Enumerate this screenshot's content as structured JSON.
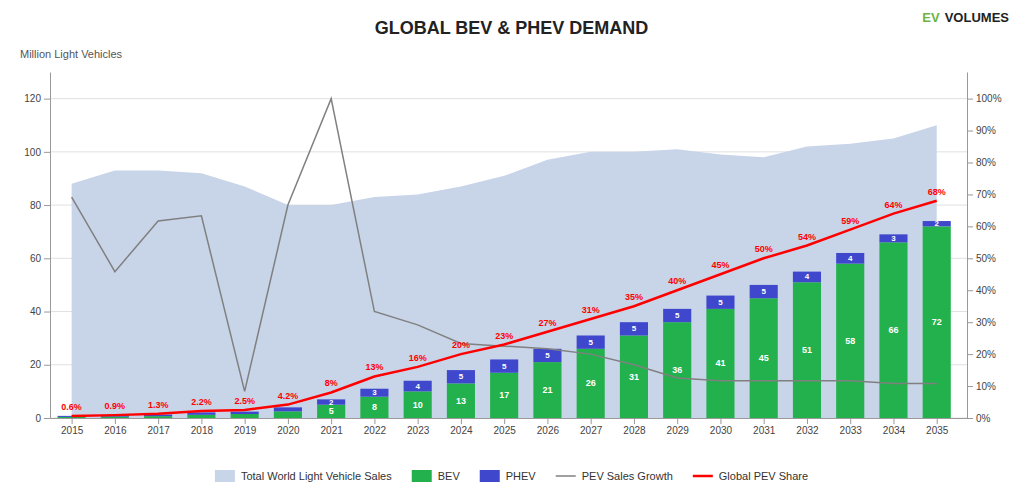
{
  "chart_data": {
    "type": "bar",
    "title": "GLOBAL BEV & PHEV DEMAND",
    "ylabel": "Million Light Vehicles",
    "annotations": [
      {
        "text": "EV",
        "color": "#6db33f"
      },
      {
        "text": "VOLUMES",
        "color": "#222222"
      }
    ],
    "x": [
      2015,
      2016,
      2017,
      2018,
      2019,
      2020,
      2021,
      2022,
      2023,
      2024,
      2025,
      2026,
      2027,
      2028,
      2029,
      2030,
      2031,
      2032,
      2033,
      2034,
      2035
    ],
    "xlim": [
      2014.5,
      2035.7
    ],
    "xticks": [
      2015,
      2016,
      2017,
      2018,
      2019,
      2020,
      2021,
      2022,
      2023,
      2024,
      2025,
      2026,
      2027,
      2028,
      2029,
      2030,
      2031,
      2032,
      2033,
      2034,
      2035
    ],
    "ylim": [
      0,
      130
    ],
    "yticks": [
      0,
      20,
      40,
      60,
      80,
      100,
      120
    ],
    "y2lim": [
      0,
      108.33
    ],
    "y2ticks": [
      {
        "value": 0,
        "label": "0%"
      },
      {
        "value": 10,
        "label": "10%"
      },
      {
        "value": 20,
        "label": "20%"
      },
      {
        "value": 30,
        "label": "30%"
      },
      {
        "value": 40,
        "label": "40%"
      },
      {
        "value": 50,
        "label": "50%"
      },
      {
        "value": 60,
        "label": "60%"
      },
      {
        "value": 70,
        "label": "70%"
      },
      {
        "value": 80,
        "label": "80%"
      },
      {
        "value": 90,
        "label": "90%"
      },
      {
        "value": 100,
        "label": "100%"
      }
    ],
    "stacked": true,
    "grid": true,
    "legend": "bottom",
    "series": [
      {
        "name": "Total World Light Vehicle Sales",
        "type": "area",
        "color": "#c8d4e8",
        "values": [
          88,
          93,
          93,
          92,
          87,
          80,
          80,
          83,
          84,
          87,
          91,
          97,
          100,
          100,
          101,
          99,
          98,
          102,
          103,
          105,
          110
        ]
      },
      {
        "name": "BEV",
        "type": "bar",
        "color": "#22b14c",
        "values": [
          0.4,
          0.5,
          0.7,
          1.2,
          1.5,
          2.5,
          5,
          8,
          10,
          13,
          17,
          21,
          26,
          31,
          36,
          41,
          45,
          51,
          58,
          66,
          72
        ],
        "value_labels": [
          null,
          null,
          null,
          null,
          null,
          null,
          "5",
          "8",
          "10",
          "13",
          "17",
          "21",
          "26",
          "31",
          "36",
          "41",
          "45",
          "51",
          "58",
          "66",
          "72"
        ]
      },
      {
        "name": "PHEV",
        "type": "bar",
        "color": "#3f48cc",
        "values": [
          0.4,
          0.5,
          0.6,
          0.9,
          0.9,
          1.5,
          2,
          3,
          4,
          5,
          5,
          5,
          5,
          5,
          5,
          5,
          5,
          4,
          4,
          3,
          2
        ],
        "value_labels": [
          null,
          null,
          null,
          null,
          null,
          null,
          "2",
          "3",
          "4",
          "5",
          "5",
          "5",
          "5",
          "5",
          "5",
          "5",
          "5",
          "4",
          "4",
          "3",
          "2"
        ]
      },
      {
        "name": "PEV Sales Growth",
        "type": "line",
        "color": "#808080",
        "values": [
          83,
          55,
          74,
          76,
          10,
          80,
          120,
          40,
          35,
          28,
          27,
          26,
          24,
          20,
          15,
          14,
          14,
          14,
          14,
          13,
          13
        ]
      },
      {
        "name": "Global PEV Share",
        "type": "line",
        "axis": "y2",
        "color": "#ff0000",
        "values": [
          0.6,
          0.9,
          1.3,
          2.2,
          2.5,
          4.2,
          8,
          13,
          16,
          20,
          23,
          27,
          31,
          35,
          40,
          45,
          50,
          54,
          59,
          64,
          68
        ],
        "value_labels": [
          "0.6%",
          "0.9%",
          "1.3%",
          "2.2%",
          "2.5%",
          "4.2%",
          "8%",
          "13%",
          "16%",
          "20%",
          "23%",
          "27%",
          "31%",
          "35%",
          "40%",
          "45%",
          "50%",
          "54%",
          "59%",
          "64%",
          "68%"
        ]
      }
    ]
  }
}
